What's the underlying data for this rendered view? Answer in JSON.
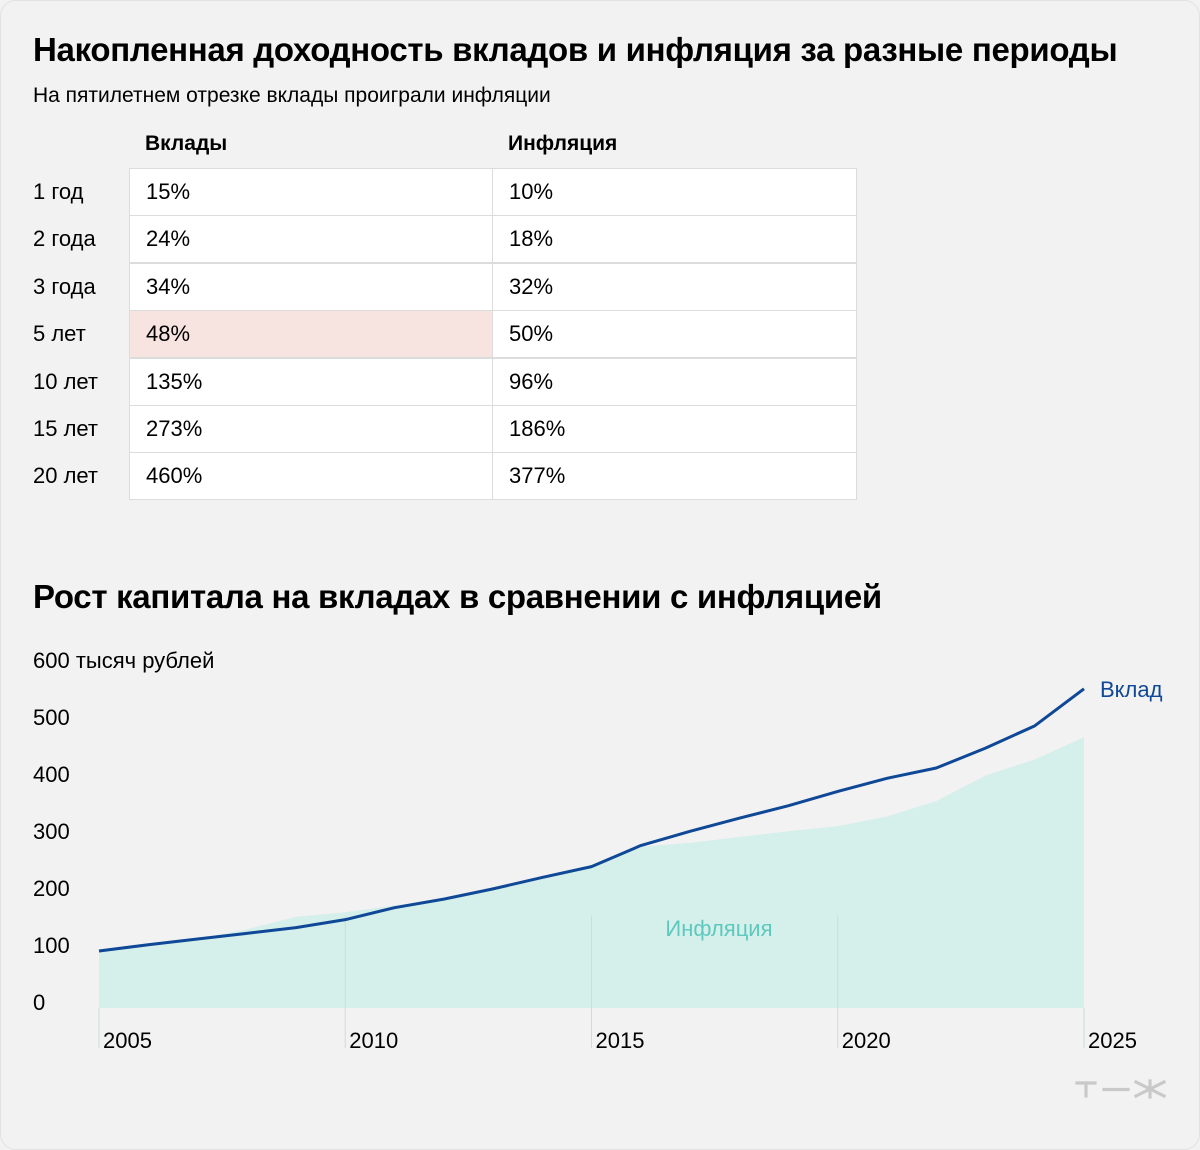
{
  "table": {
    "title": "Накопленная доходность вкладов и инфляция за разные периоды",
    "subtitle": "На пятилетнем отрезке вклады проиграли инфляции",
    "columns": [
      "Вклады",
      "Инфляция"
    ],
    "rows": [
      {
        "period": "1 год",
        "deposits": "15%",
        "inflation": "10%"
      },
      {
        "period": "2 года",
        "deposits": "24%",
        "inflation": "18%"
      },
      {
        "period": "3 года",
        "deposits": "34%",
        "inflation": "32%"
      },
      {
        "period": "5 лет",
        "deposits": "48%",
        "inflation": "50%",
        "highlight": "deposits"
      },
      {
        "period": "10 лет",
        "deposits": "135%",
        "inflation": "96%"
      },
      {
        "period": "15 лет",
        "deposits": "273%",
        "inflation": "186%"
      },
      {
        "period": "20 лет",
        "deposits": "460%",
        "inflation": "377%"
      }
    ],
    "highlight_color": "#f7e3e0"
  },
  "chart_data": {
    "type": "area",
    "title": "Рост капитала на вкладах в сравнении с инфляцией",
    "ylabel": "600 тысяч рублей",
    "ylim": [
      0,
      600
    ],
    "yticks": [
      0,
      100,
      200,
      300,
      400,
      500
    ],
    "xlim": [
      2005,
      2025
    ],
    "xticks": [
      2005,
      2010,
      2015,
      2020,
      2025
    ],
    "vertical_gridlines": [
      2010,
      2015,
      2020
    ],
    "series": [
      {
        "name": "Вклад",
        "type": "line",
        "color": "#0f4896",
        "x": [
          2005,
          2006,
          2007,
          2008,
          2009,
          2010,
          2011,
          2012,
          2013,
          2014,
          2015,
          2016,
          2017,
          2018,
          2019,
          2020,
          2021,
          2022,
          2023,
          2024,
          2025
        ],
        "y": [
          100,
          111,
          121,
          131,
          141,
          155,
          176,
          191,
          209,
          229,
          248,
          285,
          310,
          333,
          355,
          380,
          403,
          421,
          456,
          495,
          560
        ]
      },
      {
        "name": "Инфляция",
        "type": "area",
        "color": "#d5efeb",
        "label_color": "#5dc9be",
        "x": [
          2005,
          2006,
          2007,
          2008,
          2009,
          2010,
          2011,
          2012,
          2013,
          2014,
          2015,
          2016,
          2017,
          2018,
          2019,
          2020,
          2021,
          2022,
          2023,
          2024,
          2025
        ],
        "y": [
          100,
          111,
          121,
          138,
          160,
          168,
          180,
          190,
          209,
          229,
          248,
          283,
          290,
          300,
          310,
          319,
          336,
          363,
          408,
          436,
          475
        ]
      }
    ]
  },
  "logo": {
    "icon": "tzh-logo",
    "color": "#c9c9c9"
  }
}
